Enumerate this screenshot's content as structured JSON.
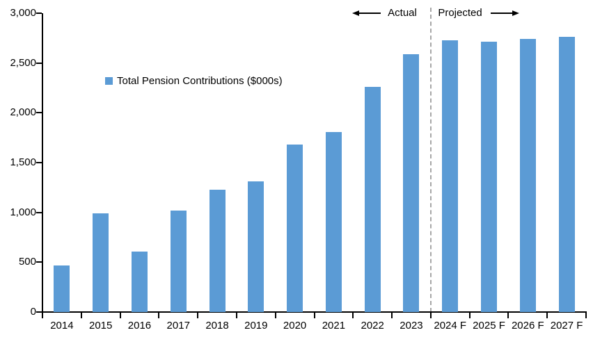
{
  "annotations": {
    "actual_label": "Actual",
    "projected_label": "Projected"
  },
  "legend": {
    "label": "Total Pension Contributions ($000s)"
  },
  "colors": {
    "bar": "#5B9BD5",
    "divider": "#A6A6A6",
    "axis": "#000000"
  },
  "chart_data": {
    "type": "bar",
    "title": "",
    "series_name": "Total Pension Contributions ($000s)",
    "categories": [
      "2014",
      "2015",
      "2016",
      "2017",
      "2018",
      "2019",
      "2020",
      "2021",
      "2022",
      "2023",
      "2024 F",
      "2025 F",
      "2026 F",
      "2027 F"
    ],
    "values": [
      470,
      990,
      610,
      1020,
      1230,
      1310,
      1680,
      1810,
      2260,
      2590,
      2725,
      2715,
      2745,
      2765
    ],
    "xlabel": "",
    "ylabel": "",
    "ylim": [
      0,
      3000
    ],
    "ytick_interval": 500,
    "ytick_labels": [
      "0",
      "500",
      "1,000",
      "1,500",
      "2,000",
      "2,500",
      "3,000"
    ],
    "grid": false,
    "legend_position": "inside-upper-left",
    "divider_after_category": "2023",
    "actual_section_label": "Actual",
    "projected_section_label": "Projected",
    "bar_color": "#5B9BD5"
  }
}
